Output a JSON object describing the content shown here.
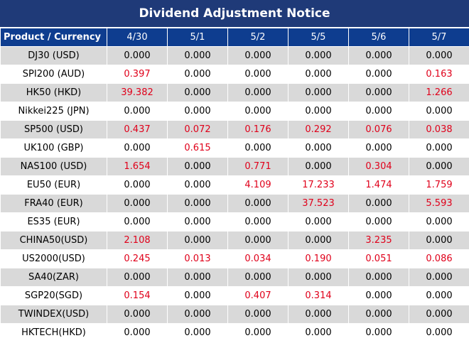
{
  "title": "Dividend Adjustment Notice",
  "header": [
    "Product / Currency",
    "4/30",
    "5/1",
    "5/2",
    "5/5",
    "5/6",
    "5/7"
  ],
  "rows": [
    [
      "DJ30 (USD)",
      "0.000",
      "0.000",
      "0.000",
      "0.000",
      "0.000",
      "0.000"
    ],
    [
      "SPI200 (AUD)",
      "0.397",
      "0.000",
      "0.000",
      "0.000",
      "0.000",
      "0.163"
    ],
    [
      "HK50 (HKD)",
      "39.382",
      "0.000",
      "0.000",
      "0.000",
      "0.000",
      "1.266"
    ],
    [
      "Nikkei225 (JPN)",
      "0.000",
      "0.000",
      "0.000",
      "0.000",
      "0.000",
      "0.000"
    ],
    [
      "SP500 (USD)",
      "0.437",
      "0.072",
      "0.176",
      "0.292",
      "0.076",
      "0.038"
    ],
    [
      "UK100 (GBP)",
      "0.000",
      "0.615",
      "0.000",
      "0.000",
      "0.000",
      "0.000"
    ],
    [
      "NAS100 (USD)",
      "1.654",
      "0.000",
      "0.771",
      "0.000",
      "0.304",
      "0.000"
    ],
    [
      "EU50 (EUR)",
      "0.000",
      "0.000",
      "4.109",
      "17.233",
      "1.474",
      "1.759"
    ],
    [
      "FRA40 (EUR)",
      "0.000",
      "0.000",
      "0.000",
      "37.523",
      "0.000",
      "5.593"
    ],
    [
      "ES35 (EUR)",
      "0.000",
      "0.000",
      "0.000",
      "0.000",
      "0.000",
      "0.000"
    ],
    [
      "CHINA50(USD)",
      "2.108",
      "0.000",
      "0.000",
      "0.000",
      "3.235",
      "0.000"
    ],
    [
      "US2000(USD)",
      "0.245",
      "0.013",
      "0.034",
      "0.190",
      "0.051",
      "0.086"
    ],
    [
      "SA40(ZAR)",
      "0.000",
      "0.000",
      "0.000",
      "0.000",
      "0.000",
      "0.000"
    ],
    [
      "SGP20(SGD)",
      "0.154",
      "0.000",
      "0.407",
      "0.314",
      "0.000",
      "0.000"
    ],
    [
      "TWINDEX(USD)",
      "0.000",
      "0.000",
      "0.000",
      "0.000",
      "0.000",
      "0.000"
    ],
    [
      "HKTECH(HKD)",
      "0.000",
      "0.000",
      "0.000",
      "0.000",
      "0.000",
      "0.000"
    ]
  ]
}
